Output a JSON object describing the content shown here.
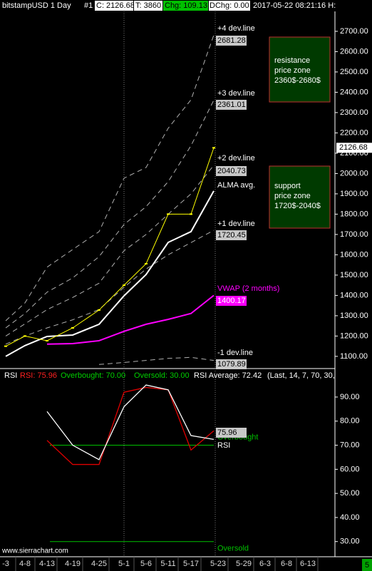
{
  "header": {
    "symbol": "bitstampUSD  1 Day",
    "chart_number": "#1",
    "close": "C: 2126.68",
    "trades": "T: 3860",
    "change": "Chg: 109.13",
    "daily_change": "DChg: 0.00",
    "timestamp": "2017-05-22 08:21:16 H:"
  },
  "watermark": "www.sierrachart.com",
  "page_number": "5",
  "zones": [
    {
      "lines": [
        "resistance",
        "price zone",
        "2360$-2680$"
      ]
    },
    {
      "lines": [
        "support",
        "price zone",
        "1720$-2040$"
      ]
    }
  ],
  "chart_data": [
    {
      "type": "line",
      "categories": [
        "-3",
        "4-8",
        "4-13",
        "4-19",
        "4-25",
        "5-1",
        "5-6",
        "5-11",
        "5-17",
        "5-23",
        "5-29",
        "6-3",
        "6-8",
        "6-13"
      ],
      "ylim": [
        1047,
        2791
      ],
      "yticks": [
        {
          "value": 1100,
          "label": "1100.00"
        },
        {
          "value": 1200,
          "label": "1200.00"
        },
        {
          "value": 1300,
          "label": "1300.00"
        },
        {
          "value": 1400,
          "label": "1400.00"
        },
        {
          "value": 1500,
          "label": "1500.00"
        },
        {
          "value": 1600,
          "label": "1600.00"
        },
        {
          "value": 1700,
          "label": "1700.00"
        },
        {
          "value": 1800,
          "label": "1800.00"
        },
        {
          "value": 1900,
          "label": "1900.00"
        },
        {
          "value": 2000,
          "label": "2000.00"
        },
        {
          "value": 2100,
          "label": "2100.00"
        },
        {
          "value": 2200,
          "label": "2200.00"
        },
        {
          "value": 2300,
          "label": "2300.00"
        },
        {
          "value": 2400,
          "label": "2400.00"
        },
        {
          "value": 2500,
          "label": "2500.00"
        },
        {
          "value": 2600,
          "label": "2600.00"
        },
        {
          "value": 2700,
          "label": "2700.00"
        }
      ],
      "bars": {
        "color": "#ffff00",
        "values": [
          1150,
          1200,
          1177,
          1240,
          1328,
          1450,
          1556,
          1800,
          1800,
          2126.68,
          null,
          null,
          null,
          null
        ]
      },
      "series": [
        {
          "name": "+4 dev.line",
          "color": "#b0b0b0",
          "dashed": true,
          "values": [
            1275,
            1363,
            1539,
            1626,
            1714,
            1977,
            2030,
            2223,
            2363,
            2681.28,
            null,
            null,
            null,
            null
          ]
        },
        {
          "name": "+3 dev.line",
          "color": "#b0b0b0",
          "dashed": true,
          "values": [
            1240,
            1311,
            1416,
            1486,
            1591,
            1749,
            1837,
            1960,
            2137,
            2361.01,
            null,
            null,
            null,
            null
          ]
        },
        {
          "name": "+2 dev.line",
          "color": "#b0b0b0",
          "dashed": true,
          "values": [
            1200,
            1260,
            1330,
            1390,
            1460,
            1620,
            1700,
            1800,
            1900,
            2040.73,
            null,
            null,
            null,
            null
          ]
        },
        {
          "name": "ALMA avg.",
          "color": "#ffffff",
          "dashed": false,
          "values": [
            1100,
            1153,
            1198,
            1205,
            1258,
            1398,
            1503,
            1661,
            1714,
            1914,
            null,
            null,
            null,
            null
          ]
        },
        {
          "name": "+1 dev.line",
          "color": "#b0b0b0",
          "dashed": true,
          "values": [
            1160,
            1200,
            1240,
            1280,
            1330,
            1440,
            1530,
            1600,
            1660,
            1720.45,
            null,
            null,
            null,
            null
          ]
        },
        {
          "name": "VWAP (2 months)",
          "color": "#ff00ff",
          "dashed": false,
          "values": [
            null,
            null,
            1160,
            1163,
            1177,
            1223,
            1258,
            1282,
            1311,
            1400.17,
            null,
            null,
            null,
            null
          ]
        },
        {
          "name": "-1 dev.line",
          "color": "#b0b0b0",
          "dashed": true,
          "values": [
            null,
            null,
            null,
            null,
            1060,
            1070,
            1080,
            1090,
            1095,
            1079.89,
            null,
            null,
            null,
            null
          ]
        }
      ]
    },
    {
      "type": "line",
      "study": "RSI",
      "status": [
        {
          "text": "RSI: 75.96",
          "color": "#ff2020"
        },
        {
          "text": "Overbought: 70.00",
          "color": "#00d000"
        },
        {
          "text": "Oversold: 30.00",
          "color": "#00d000"
        },
        {
          "text": "RSI Average: 72.42",
          "color": "#ffffff"
        },
        {
          "text": "(Last, 14, 7, 70, 30,",
          "color": "#ffffff"
        }
      ],
      "categories": [
        "-3",
        "4-8",
        "4-13",
        "4-19",
        "4-25",
        "5-1",
        "5-6",
        "5-11",
        "5-17",
        "5-23",
        "5-29",
        "6-3",
        "6-8",
        "6-13"
      ],
      "ylim": [
        24,
        96.5
      ],
      "yticks": [
        {
          "value": 30,
          "label": "30.00"
        },
        {
          "value": 40,
          "label": "40.00"
        },
        {
          "value": 50,
          "label": "50.00"
        },
        {
          "value": 60,
          "label": "60.00"
        },
        {
          "value": 70,
          "label": "70.00"
        },
        {
          "value": 80,
          "label": "80.00"
        },
        {
          "value": 90,
          "label": "90.00"
        }
      ],
      "levels": [
        {
          "name": "Overbought",
          "value": 70,
          "color": "#00c000"
        },
        {
          "name": "Oversold",
          "value": 30,
          "color": "#00c000"
        }
      ],
      "series": [
        {
          "name": "RSI",
          "color": "#e00000",
          "values": [
            null,
            null,
            72,
            62,
            62,
            92,
            94,
            93,
            68,
            75.96,
            null,
            null,
            null,
            null
          ]
        },
        {
          "name": "RSI Average",
          "color": "#ffffff",
          "values": [
            null,
            null,
            84,
            70,
            64,
            86,
            95,
            93,
            74,
            72.42,
            null,
            null,
            null,
            null
          ]
        }
      ]
    }
  ]
}
